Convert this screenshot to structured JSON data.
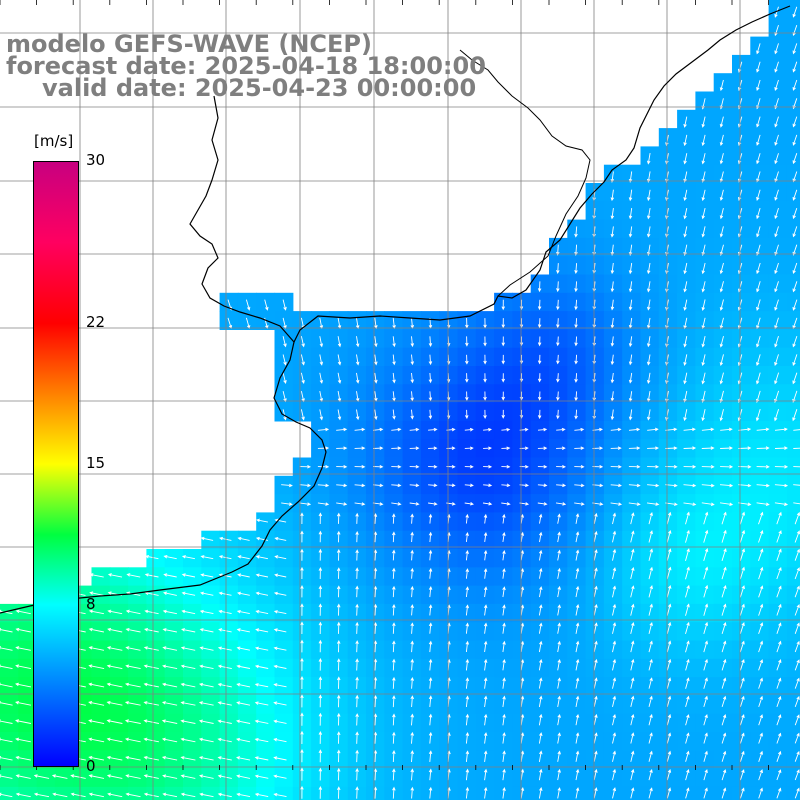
{
  "title": {
    "line1": "modelo GEFS-WAVE (NCEP)",
    "line2": "forecast date: 2025-04-18 18:00:00",
    "line3": "valid date: 2025-04-23 00:00:00"
  },
  "colorbar": {
    "unit": "[m/s]",
    "ticks": [
      {
        "label": "30",
        "value": 30
      },
      {
        "label": "22",
        "value": 22
      },
      {
        "label": "15",
        "value": 15
      },
      {
        "label": "8",
        "value": 8
      },
      {
        "label": "0",
        "value": 0
      }
    ],
    "min": 0,
    "max": 30,
    "stops": [
      {
        "v": 0,
        "color": "#0000ff"
      },
      {
        "v": 4,
        "color": "#0080ff"
      },
      {
        "v": 8,
        "color": "#00ffff"
      },
      {
        "v": 11.5,
        "color": "#00ff40"
      },
      {
        "v": 15,
        "color": "#ffff00"
      },
      {
        "v": 18.5,
        "color": "#ff8000"
      },
      {
        "v": 22,
        "color": "#ff0000"
      },
      {
        "v": 26,
        "color": "#ff0060"
      },
      {
        "v": 30,
        "color": "#c80080"
      }
    ]
  },
  "colors": {
    "land": "#ffffff",
    "coast": "#000000",
    "grid": "#808080",
    "arrow": "#ffffff"
  }
}
